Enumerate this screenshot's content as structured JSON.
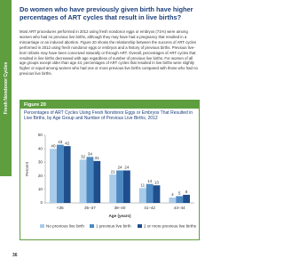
{
  "side_tab": "Fresh Nondonor Cycles",
  "heading": "Do women who have previously given birth have higher percentages of ART cycles that result in live births?",
  "paragraph": "Most ART procedures performed in 2012 using fresh nondonor eggs or embryos (71%) were among women who had no previous live births, although they may have had a pregnancy that resulted in a miscarriage or an induced abortion. Figure 20 shows the relationship between the success of ART cycles performed in 2012 using fresh nondonor eggs or embryos and a history of previous births. Previous live-born infants may have been conceived naturally or through ART. Overall, percentages of ART cycles that resulted in live births decreased with age regardless of number of previous live births. For women of all age groups except older than age 44, percentages of ART cycles that resulted in live births were slightly higher or equal among women who had one or more previous live births compared with those who had no previous live births.",
  "figure": {
    "label": "Figure 20",
    "title": "Percentages of ART Cycles Using Fresh Nondonor Eggs or Embryos That Resulted in Live Births, by Age Group and Number of Previous Live Births, 2012"
  },
  "chart_data": {
    "type": "bar",
    "categories": [
      "<35",
      "35–37",
      "38–40",
      "41–42",
      "43–44"
    ],
    "series": [
      {
        "name": "No previous live birth",
        "color": "#a9cbe8",
        "values": [
          40,
          32,
          21,
          11,
          4
        ]
      },
      {
        "name": "1 previous live birth",
        "color": "#4d8ac4",
        "values": [
          43,
          34,
          24,
          14,
          5
        ]
      },
      {
        "name": "2 or more previous live births",
        "color": "#1f4e8c",
        "values": [
          42,
          31,
          24,
          13,
          6
        ]
      }
    ],
    "ylim": [
      0,
      50
    ],
    "yticks": [
      0,
      10,
      20,
      30,
      40,
      50
    ],
    "y_label": "Percent",
    "x_label": "Age (years)"
  },
  "page_number": "36"
}
